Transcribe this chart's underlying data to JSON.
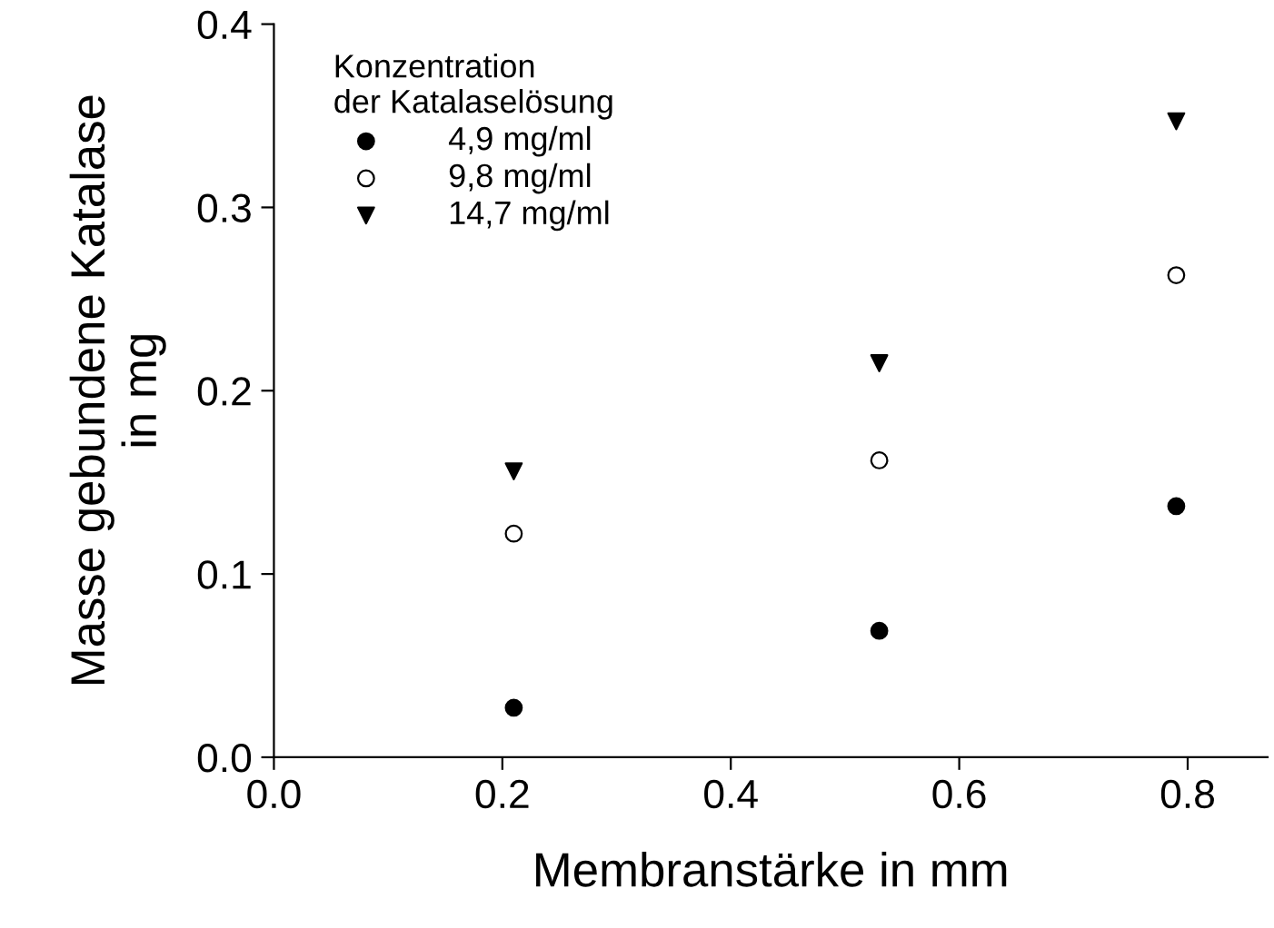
{
  "chart_data": {
    "type": "scatter",
    "xlabel": "Membranstärke in mm",
    "ylabel": "Masse gebundene Katalase\nin mg",
    "legend_title": "Konzentration\nder Katalaselösung",
    "legend": "top left",
    "grid": false,
    "xlim": [
      0,
      0.87
    ],
    "xticks": [
      {
        "value": 0,
        "label": "0.0"
      },
      0.2,
      0.4,
      0.6,
      0.8
    ],
    "ylim": [
      0,
      0.4
    ],
    "yticks": [
      {
        "value": 0,
        "label": "0.0"
      },
      0.1,
      0.2,
      0.3,
      0.4
    ],
    "series": [
      {
        "name": "4,9 mg/ml",
        "color": "#000000",
        "marker": "circle",
        "x": [
          0.21,
          0.53,
          0.79
        ],
        "values": [
          0.027,
          0.069,
          0.137
        ]
      },
      {
        "name": "9,8 mg/ml",
        "color": "#000000",
        "marker": "open circle",
        "x": [
          0.21,
          0.53,
          0.79
        ],
        "values": [
          0.122,
          0.162,
          0.263
        ]
      },
      {
        "name": "14,7 mg/ml",
        "color": "#000000",
        "marker": "triangle",
        "x": [
          0.21,
          0.53,
          0.79
        ],
        "values": [
          0.156,
          0.215,
          0.347
        ]
      }
    ]
  }
}
